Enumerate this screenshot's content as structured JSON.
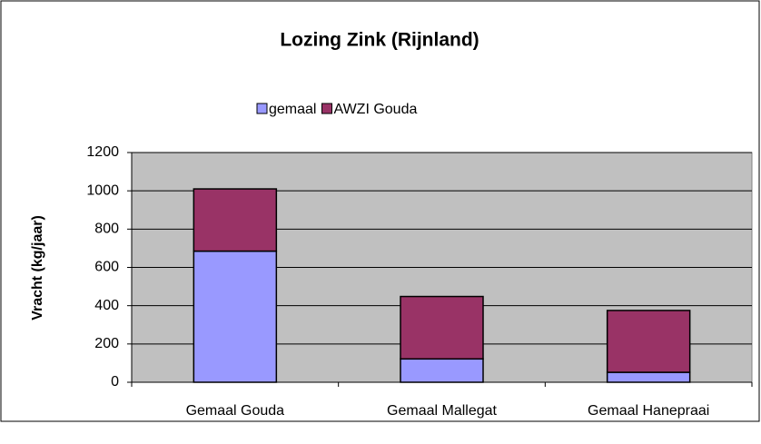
{
  "chart_data": {
    "type": "stacked_bar",
    "title": "Lozing Zink (Rijnland)",
    "y_label": "Vracht (kg/jaar)",
    "categories": [
      "Gemaal Gouda",
      "Gemaal Mallegat",
      "Gemaal Hanepraai"
    ],
    "series": [
      {
        "name": "gemaal",
        "color": "#9999ff",
        "values": [
          685,
          122,
          52
        ]
      },
      {
        "name": "AWZI Gouda",
        "color": "#993366",
        "values": [
          325,
          326,
          323
        ]
      }
    ],
    "ylim": [
      0,
      1200
    ],
    "yticks": [
      0,
      200,
      400,
      600,
      800,
      1000,
      1200
    ],
    "grid": true,
    "legend": "top"
  }
}
